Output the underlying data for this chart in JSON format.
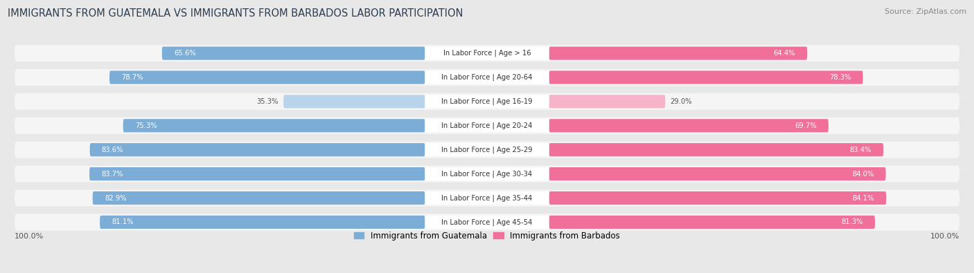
{
  "title": "IMMIGRANTS FROM GUATEMALA VS IMMIGRANTS FROM BARBADOS LABOR PARTICIPATION",
  "source": "Source: ZipAtlas.com",
  "categories": [
    "In Labor Force | Age > 16",
    "In Labor Force | Age 20-64",
    "In Labor Force | Age 16-19",
    "In Labor Force | Age 20-24",
    "In Labor Force | Age 25-29",
    "In Labor Force | Age 30-34",
    "In Labor Force | Age 35-44",
    "In Labor Force | Age 45-54"
  ],
  "guatemala_values": [
    65.6,
    78.7,
    35.3,
    75.3,
    83.6,
    83.7,
    82.9,
    81.1
  ],
  "barbados_values": [
    64.4,
    78.3,
    29.0,
    69.7,
    83.4,
    84.0,
    84.1,
    81.3
  ],
  "guatemala_color": "#7badd6",
  "guatemala_color_light": "#b8d3ea",
  "barbados_color": "#f0709a",
  "barbados_color_light": "#f7b3c8",
  "background_color": "#e8e8e8",
  "row_bg_color": "#f5f5f5",
  "bar_height": 0.55,
  "legend_guatemala": "Immigrants from Guatemala",
  "legend_barbados": "Immigrants from Barbados",
  "x_max": 100.0,
  "label_half": 13,
  "scale": 0.84,
  "title_color": "#2c3e50",
  "source_color": "#888888",
  "value_color_dark": "#555555"
}
